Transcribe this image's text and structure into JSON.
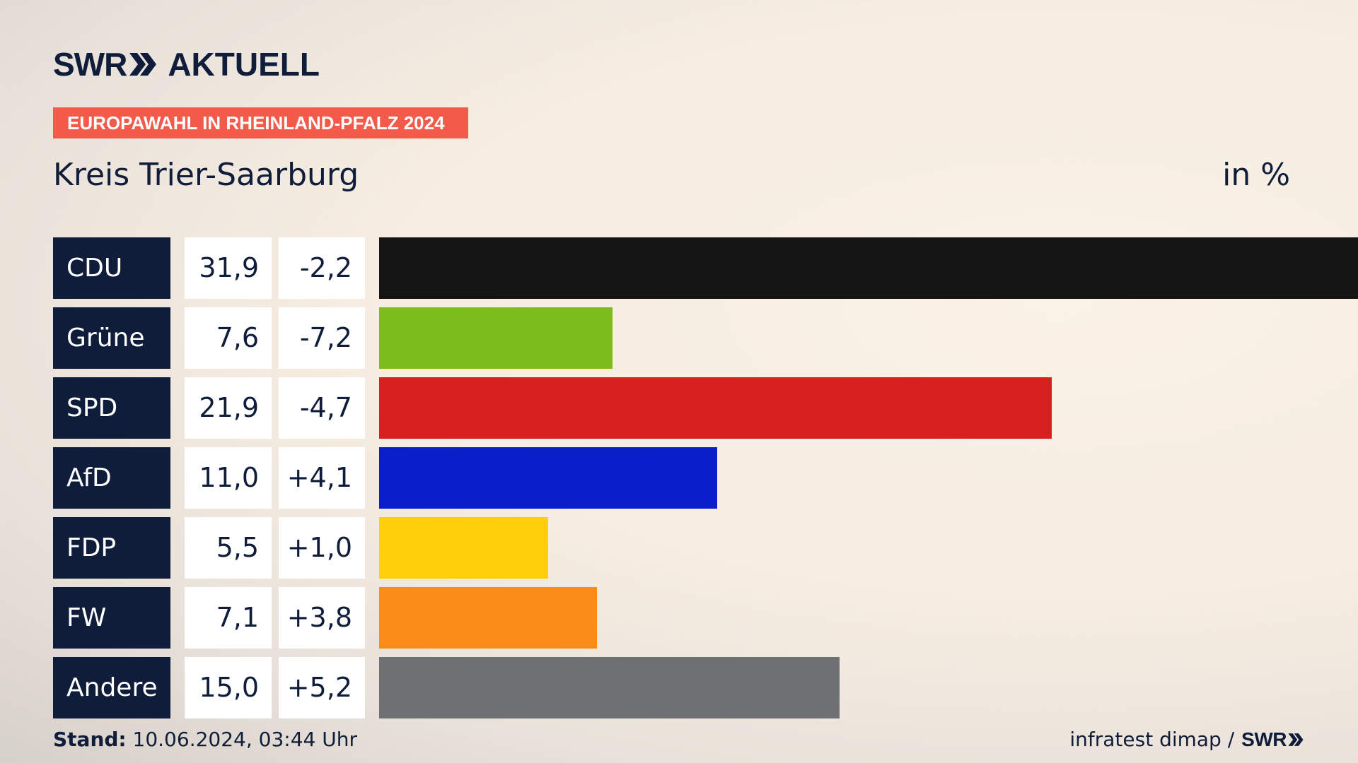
{
  "brand": {
    "logo_swr": "SWR",
    "logo_product": "AKTUELL",
    "icon": "double-chevron-right-icon",
    "color": "#0f1d3b"
  },
  "tag": {
    "label": "EUROPAWAHL IN RHEINLAND-PFALZ 2024",
    "color": "#f45a4a"
  },
  "header": {
    "region": "Kreis Trier-Saarburg",
    "unit": "in %"
  },
  "chart_data": {
    "type": "bar",
    "orientation": "horizontal",
    "categories": [
      "CDU",
      "Grüne",
      "SPD",
      "AfD",
      "FDP",
      "FW",
      "Andere"
    ],
    "values": [
      31.9,
      7.6,
      21.9,
      11.0,
      5.5,
      7.1,
      15.0
    ],
    "value_labels": [
      "31,9",
      "7,6",
      "21,9",
      "11,0",
      "5,5",
      "7,1",
      "15,0"
    ],
    "differences": [
      "-2,2",
      "-7,2",
      "-4,7",
      "+4,1",
      "+1,0",
      "+3,8",
      "+5,2"
    ],
    "colors": [
      "#141414",
      "#7ebd1e",
      "#d8201f",
      "#0a1fcb",
      "#ffcf0a",
      "#fb8b17",
      "#6e7072"
    ],
    "xlim": [
      0,
      31.9
    ],
    "grid": false,
    "title": "",
    "xlabel": "",
    "ylabel": ""
  },
  "footer": {
    "stand_label": "Stand:",
    "stand_value": "10.06.2024, 03:44 Uhr",
    "source": "infratest dimap /",
    "source_logo": "SWR"
  }
}
